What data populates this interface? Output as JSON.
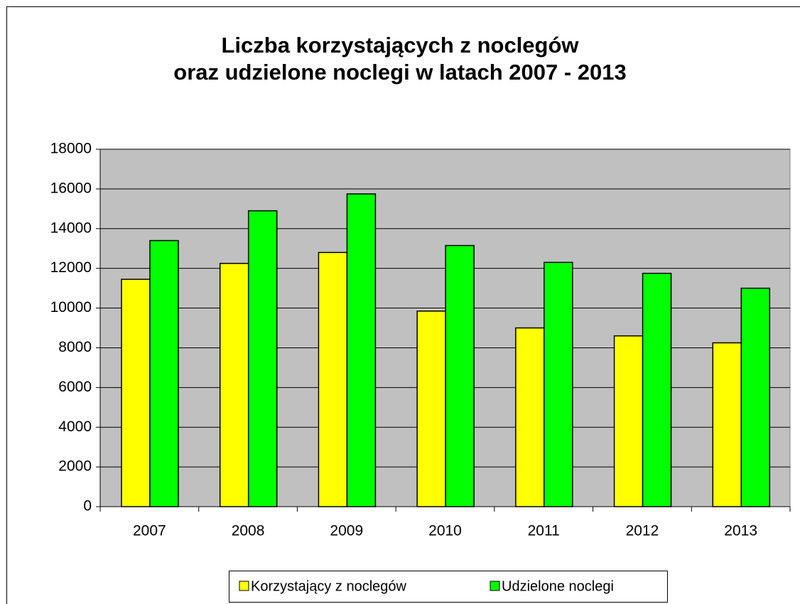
{
  "chart_data": {
    "type": "bar",
    "title": [
      "Liczba korzystających z noclegów",
      "oraz udzielone noclegi w latach 2007 - 2013"
    ],
    "categories": [
      "2007",
      "2008",
      "2009",
      "2010",
      "2011",
      "2012",
      "2013"
    ],
    "series": [
      {
        "name": "Korzystający z noclegów",
        "color": "#ffff00",
        "values": [
          11450,
          12250,
          12800,
          9850,
          9000,
          8600,
          8250
        ]
      },
      {
        "name": "Udzielone noclegi",
        "color": "#00ff00",
        "values": [
          13400,
          14900,
          15750,
          13150,
          12300,
          11750,
          11000
        ]
      }
    ],
    "ylim": [
      0,
      18000
    ],
    "yticks": [
      0,
      2000,
      4000,
      6000,
      8000,
      10000,
      12000,
      14000,
      16000,
      18000
    ],
    "grid": true,
    "legend": "bottom"
  }
}
